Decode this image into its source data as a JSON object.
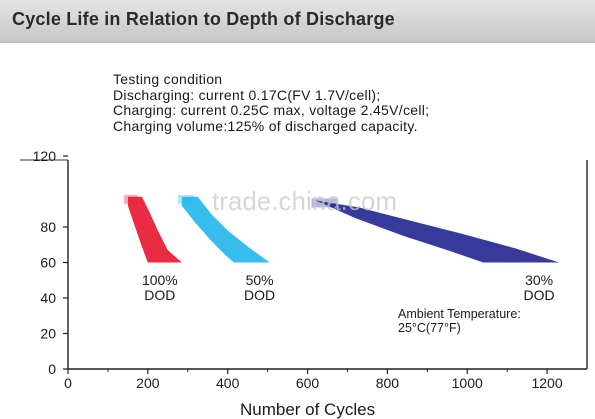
{
  "header": {
    "title": "Cycle Life in Relation to Depth of Discharge"
  },
  "testing_conditions": [
    "Testing condition",
    "Discharging: current 0.17C(FV 1.7V/cell);",
    "Charging: current 0.25C max, voltage 2.45V/cell;",
    "Charging volume:125% of discharged capacity."
  ],
  "watermark": "trade.china.com",
  "chart_data": {
    "type": "area",
    "xlabel": "Number of Cycles",
    "ylabel": "",
    "xlim": [
      0,
      1300
    ],
    "ylim": [
      0,
      120
    ],
    "x_ticks": [
      0,
      200,
      400,
      600,
      800,
      1000,
      1200
    ],
    "y_ticks": [
      0,
      20,
      40,
      60,
      80,
      120
    ],
    "series": [
      {
        "name": "100% DOD",
        "label_lines": [
          "100%",
          "DOD"
        ],
        "color": "#e8203a",
        "start_x": 170,
        "upper": [
          [
            185,
            97
          ],
          [
            205,
            88
          ],
          [
            225,
            78
          ],
          [
            250,
            67
          ],
          [
            285,
            60
          ]
        ],
        "lower": [
          [
            150,
            92
          ],
          [
            168,
            80
          ],
          [
            185,
            69
          ],
          [
            200,
            60
          ]
        ]
      },
      {
        "name": "50% DOD",
        "label_lines": [
          "50%",
          "DOD"
        ],
        "color": "#2bb8ec",
        "start_x": 310,
        "upper": [
          [
            325,
            97
          ],
          [
            360,
            87
          ],
          [
            400,
            78
          ],
          [
            450,
            69
          ],
          [
            505,
            60
          ]
        ],
        "lower": [
          [
            285,
            92
          ],
          [
            320,
            82
          ],
          [
            360,
            72
          ],
          [
            395,
            64
          ],
          [
            415,
            60
          ]
        ]
      },
      {
        "name": "30% DOD",
        "label_lines": [
          "30%",
          "DOD"
        ],
        "color": "#2a2f96",
        "start_x": 670,
        "upper": [
          [
            730,
            91
          ],
          [
            850,
            84
          ],
          [
            990,
            76
          ],
          [
            1120,
            68
          ],
          [
            1230,
            60
          ]
        ],
        "lower": [
          [
            620,
            95
          ],
          [
            720,
            85
          ],
          [
            840,
            75
          ],
          [
            950,
            67
          ],
          [
            1040,
            60
          ]
        ]
      }
    ],
    "annotation": [
      "Ambient Temperature:",
      "25°C(77°F)"
    ]
  }
}
